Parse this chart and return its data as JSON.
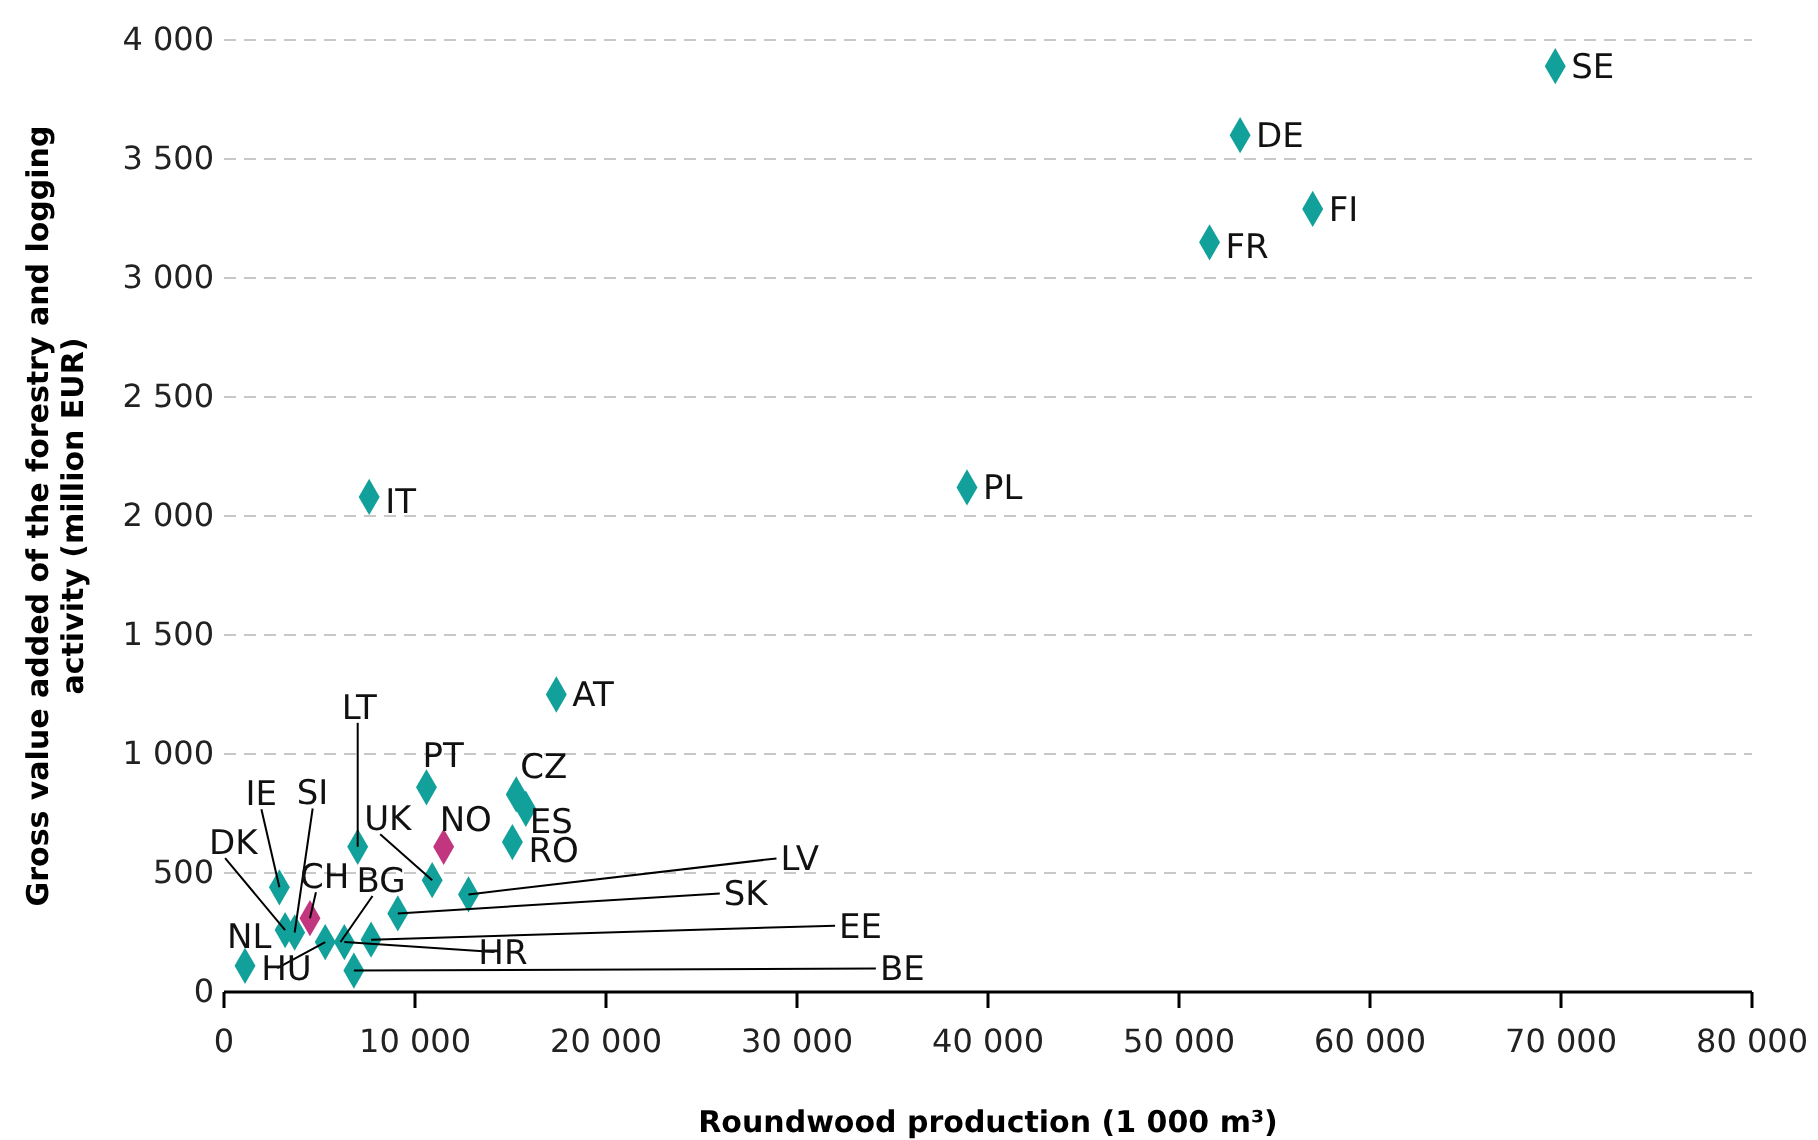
{
  "chart_data": {
    "type": "scatter",
    "xlabel": "Roundwood production (1 000 m³)",
    "ylabel": "Gross value added of the forestry and logging activity (million EUR)",
    "xlim": [
      0,
      80000
    ],
    "ylim": [
      0,
      4000
    ],
    "xticks": [
      0,
      {
        "value": 10000,
        "label": "10 000"
      },
      {
        "value": 20000,
        "label": "20 000"
      },
      {
        "value": 30000,
        "label": "30 000"
      },
      {
        "value": 40000,
        "label": "40 000"
      },
      {
        "value": 50000,
        "label": "50 000"
      },
      {
        "value": 60000,
        "label": "60 000"
      },
      {
        "value": 70000,
        "label": "70 000"
      },
      {
        "value": 80000,
        "label": "80 000"
      }
    ],
    "yticks": [
      0,
      500,
      {
        "value": 1000,
        "label": "1 000"
      },
      {
        "value": 1500,
        "label": "1 500"
      },
      {
        "value": 2000,
        "label": "2 000"
      },
      {
        "value": 2500,
        "label": "2 500"
      },
      {
        "value": 3000,
        "label": "3 000"
      },
      {
        "value": 3500,
        "label": "3 500"
      },
      {
        "value": 4000,
        "label": "4 000"
      }
    ],
    "grid": "y",
    "marker": "diamond",
    "series": [
      {
        "color": "#12a19a",
        "x": [
          69700,
          53200,
          57000,
          51600,
          38900,
          7600,
          17400,
          10600,
          15300,
          15800,
          15100,
          7000,
          10900,
          12800,
          9100,
          7700,
          5300,
          6100,
          6300,
          6800,
          2900,
          3200,
          3700,
          1100
        ],
        "values": [
          3890,
          3600,
          3290,
          3150,
          2120,
          2080,
          1250,
          860,
          830,
          770,
          630,
          610,
          470,
          410,
          330,
          220,
          210,
          null,
          210,
          90,
          440,
          260,
          250,
          110
        ]
      },
      {
        "color": "#c2357f",
        "x": [
          11500,
          4500
        ],
        "values": [
          610,
          310
        ]
      }
    ],
    "annotations": [
      {
        "text": "SE",
        "x": 69700,
        "y": 3890
      },
      {
        "text": "DE",
        "x": 53200,
        "y": 3600
      },
      {
        "text": "FI",
        "x": 57000,
        "y": 3290
      },
      {
        "text": "FR",
        "x": 51600,
        "y": 3150
      },
      {
        "text": "PL",
        "x": 38900,
        "y": 2120
      },
      {
        "text": "IT",
        "x": 7600,
        "y": 2080
      },
      {
        "text": "AT",
        "x": 17400,
        "y": 1250
      },
      {
        "text": "PT",
        "x": 10600,
        "y": 860
      },
      {
        "text": "CZ",
        "x": 15300,
        "y": 830
      },
      {
        "text": "ES",
        "x": 15800,
        "y": 770
      },
      {
        "text": "RO",
        "x": 15100,
        "y": 630
      },
      {
        "text": "LT",
        "x": 7000,
        "y": 610
      },
      {
        "text": "UK",
        "x": 10900,
        "y": 470
      },
      {
        "text": "LV",
        "x": 12800,
        "y": 410
      },
      {
        "text": "SK",
        "x": 9100,
        "y": 330
      },
      {
        "text": "EE",
        "x": 7700,
        "y": 220
      },
      {
        "text": "HU",
        "x": 5300,
        "y": 210
      },
      {
        "text": "BG",
        "x": 6100,
        "y": 210
      },
      {
        "text": "HR",
        "x": 6300,
        "y": 210
      },
      {
        "text": "BE",
        "x": 6800,
        "y": 90
      },
      {
        "text": "IE",
        "x": 2900,
        "y": 440
      },
      {
        "text": "DK",
        "x": 3200,
        "y": 260
      },
      {
        "text": "SI",
        "x": 3700,
        "y": 250
      },
      {
        "text": "NL",
        "x": 1100,
        "y": 110
      },
      {
        "text": "NO",
        "x": 11500,
        "y": 610
      },
      {
        "text": "CH",
        "x": 4500,
        "y": 310
      }
    ]
  }
}
